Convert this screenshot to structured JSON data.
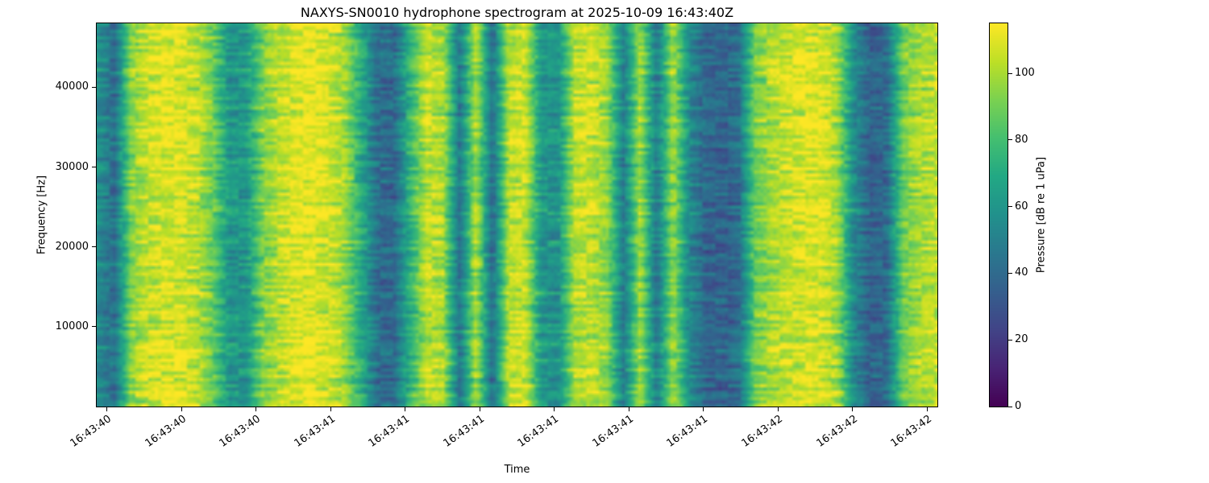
{
  "chart_data": {
    "type": "heatmap",
    "subtype": "spectrogram",
    "title": "NAXYS-SN0010 hydrophone spectrogram at 2025-10-09 16:43:40Z",
    "xlabel": "Time",
    "ylabel": "Frequency [Hz]",
    "x_tick_labels": [
      "16:43:40",
      "16:43:40",
      "16:43:40",
      "16:43:41",
      "16:43:41",
      "16:43:41",
      "16:43:41",
      "16:43:41",
      "16:43:41",
      "16:43:42",
      "16:43:42",
      "16:43:42"
    ],
    "y_tick_values": [
      10000,
      20000,
      30000,
      40000
    ],
    "ylim": [
      0,
      48000
    ],
    "grid": false,
    "legend": false,
    "colormap": "viridis",
    "colorbar": {
      "label": "Pressure [dB re 1 uPa]",
      "ticks": [
        0,
        20,
        40,
        60,
        80,
        100
      ],
      "vmin": 0,
      "vmax": 115
    },
    "viridis_stops": [
      [
        0.0,
        "#440154"
      ],
      [
        0.1,
        "#482475"
      ],
      [
        0.2,
        "#414487"
      ],
      [
        0.3,
        "#355f8d"
      ],
      [
        0.4,
        "#2a788e"
      ],
      [
        0.5,
        "#21918c"
      ],
      [
        0.6,
        "#22a884"
      ],
      [
        0.7,
        "#44bf70"
      ],
      [
        0.8,
        "#7ad151"
      ],
      [
        0.9,
        "#bddf26"
      ],
      [
        1.0,
        "#fde725"
      ]
    ],
    "time_band_profile_db": [
      55,
      42,
      95,
      106,
      110,
      108,
      104,
      88,
      60,
      62,
      92,
      104,
      110,
      112,
      108,
      100,
      70,
      42,
      40,
      75,
      104,
      100,
      45,
      102,
      42,
      104,
      107,
      62,
      58,
      102,
      106,
      96,
      48,
      100,
      46,
      100,
      55,
      38,
      36,
      42,
      90,
      100,
      106,
      110,
      108,
      100,
      55,
      36,
      40,
      90,
      100,
      104
    ]
  }
}
